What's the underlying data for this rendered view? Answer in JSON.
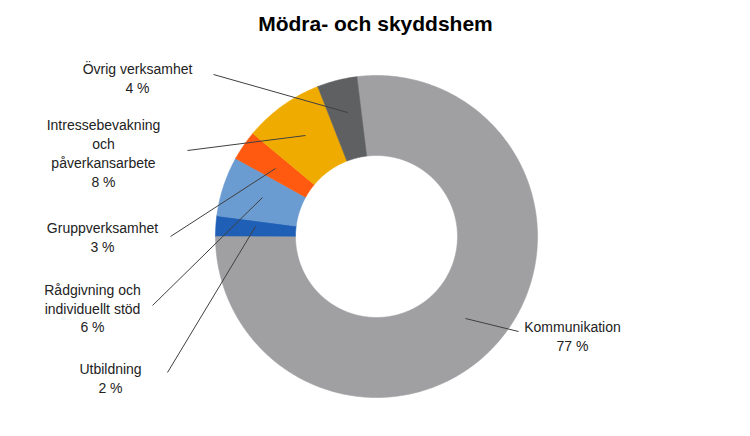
{
  "chart_data": {
    "type": "donut",
    "title": "Mödra- och skyddshem",
    "categories": [
      "Kommunikation",
      "Utbildning",
      "Rådgivning och individuellt stöd",
      "Gruppverksamhet",
      "Intressebevakning och påverkansarbete",
      "Övrig verksamhet"
    ],
    "values": [
      77,
      2,
      6,
      3,
      8,
      4
    ],
    "value_labels": [
      "77 %",
      "2 %",
      "6 %",
      "3 %",
      "8 %",
      "4 %"
    ],
    "colors": [
      "#a0a0a2",
      "#1f5fb5",
      "#6a9bd1",
      "#ff5a0f",
      "#f0ab00",
      "#5f6062"
    ],
    "data_labels": true
  }
}
